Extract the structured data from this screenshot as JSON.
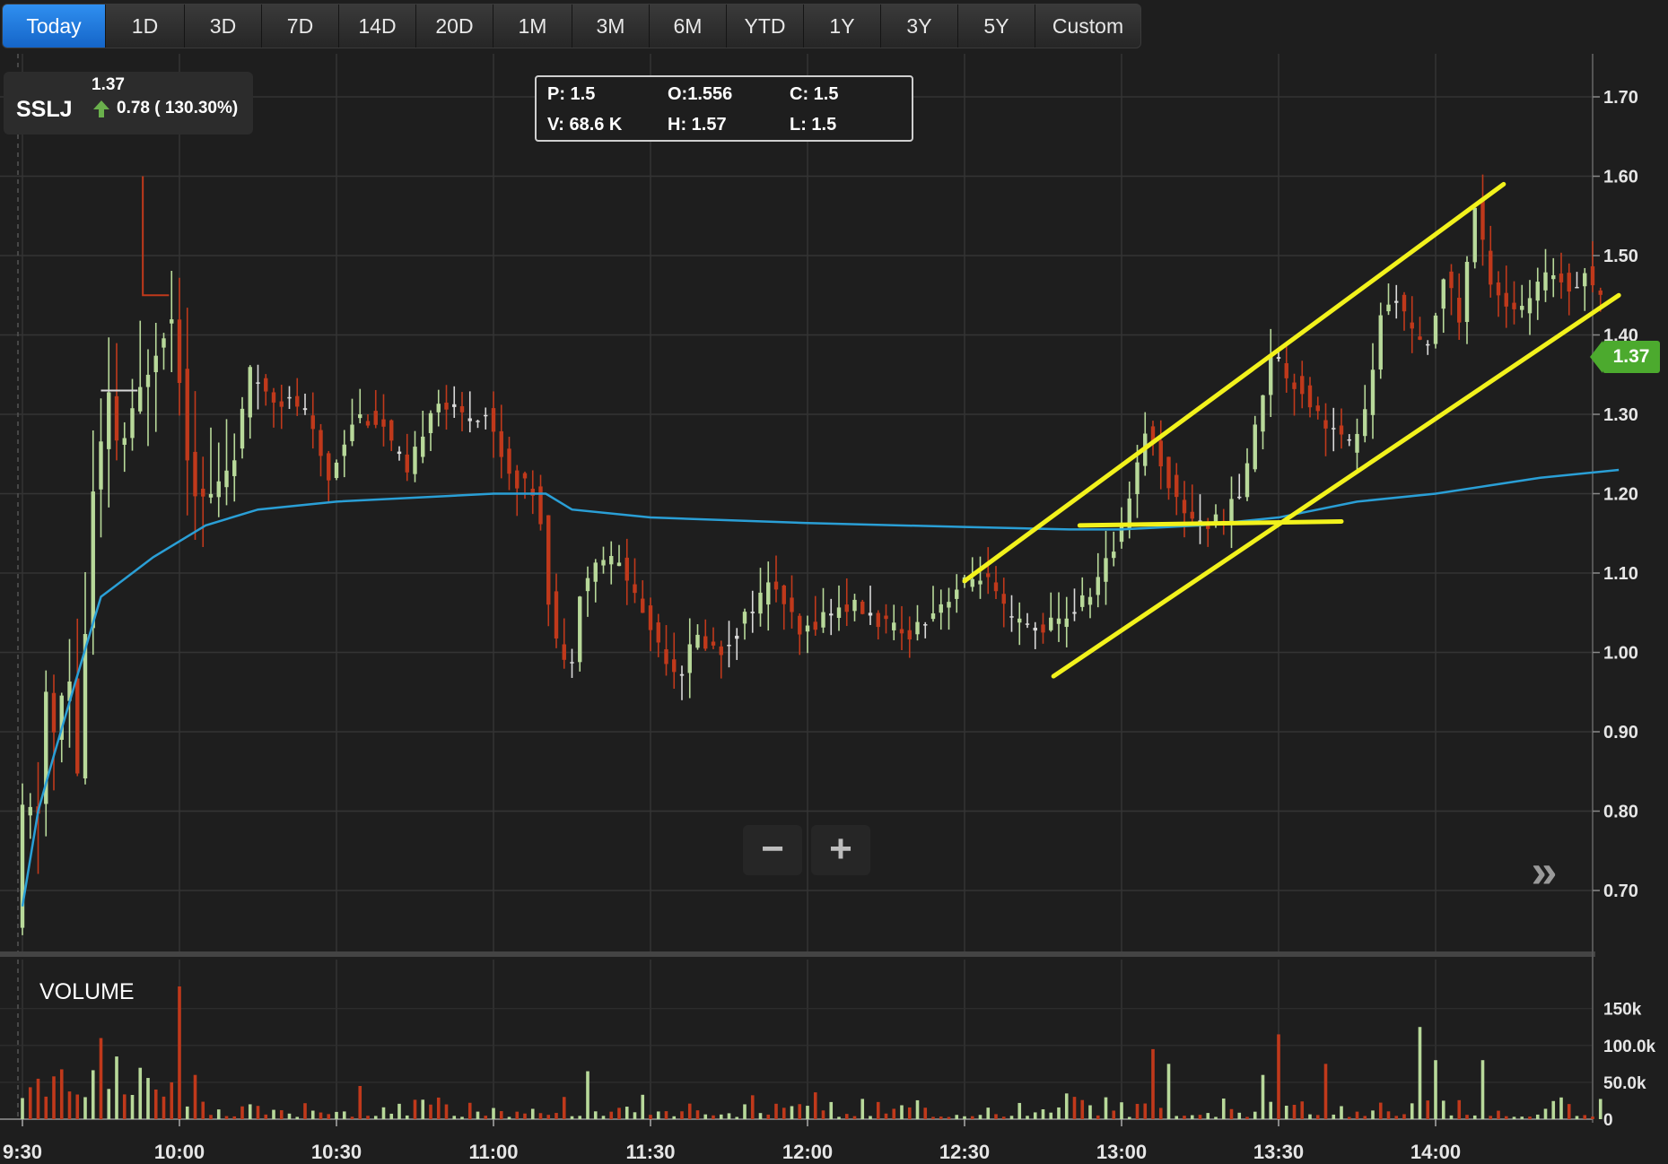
{
  "toolbar": {
    "ranges": [
      "Today",
      "1D",
      "3D",
      "7D",
      "14D",
      "20D",
      "1M",
      "3M",
      "6M",
      "YTD",
      "1Y",
      "3Y",
      "5Y",
      "Custom"
    ],
    "active": "Today"
  },
  "ticker": {
    "symbol": "SSLJ",
    "last_price": "1.37",
    "change": "0.78 ( 130.30%)"
  },
  "ohlc_panel": {
    "p": "P: 1.5",
    "o": "O:1.556",
    "c": "C: 1.5",
    "v": "V: 68.6 K",
    "h": "H: 1.57",
    "l": "L: 1.5"
  },
  "price_badge": "1.37",
  "zoom": {
    "minus": "−",
    "plus": "+"
  },
  "expand_icon": "double-chevron-right-icon",
  "volume_label": "VOLUME",
  "colors": {
    "background": "#1e1e1e",
    "up": "#b8d99a",
    "down": "#c0391b",
    "neutral": "#d9d9d9",
    "vwap": "#2a9fd6",
    "trendline": "#f2f21c",
    "active_tab": "#1e7ae0",
    "badge": "#4caa2e"
  },
  "chart_data": {
    "type": "candlestick",
    "symbol": "SSLJ",
    "x_axis": {
      "labels": [
        "9:30",
        "10:00",
        "10:30",
        "11:00",
        "11:30",
        "12:00",
        "12:30",
        "13:00",
        "13:30",
        "14:00"
      ],
      "range": [
        "9:30",
        "14:35"
      ]
    },
    "y_axis": {
      "labels": [
        "0.70",
        "0.80",
        "0.90",
        "1.00",
        "1.10",
        "1.20",
        "1.30",
        "1.40",
        "1.50",
        "1.60",
        "1.70"
      ],
      "range": [
        0.62,
        1.73
      ]
    },
    "volume_axis": {
      "labels": [
        "0",
        "50.0k",
        "100.0k",
        "150k"
      ],
      "range": [
        0,
        180000
      ]
    },
    "grid": true,
    "price_path": [
      [
        "9:30",
        0.65
      ],
      [
        "9:32",
        0.85
      ],
      [
        "9:34",
        0.75
      ],
      [
        "9:36",
        0.95
      ],
      [
        "9:38",
        0.88
      ],
      [
        "9:40",
        1.0
      ],
      [
        "9:42",
        0.85
      ],
      [
        "9:45",
        1.2
      ],
      [
        "9:48",
        1.32
      ],
      [
        "9:50",
        1.25
      ],
      [
        "9:54",
        1.33
      ],
      [
        "9:58",
        1.4
      ],
      [
        "10:00",
        1.42
      ],
      [
        "10:01",
        1.38
      ],
      [
        "10:03",
        1.25
      ],
      [
        "10:05",
        1.19
      ],
      [
        "10:08",
        1.2
      ],
      [
        "10:12",
        1.25
      ],
      [
        "10:15",
        1.35
      ],
      [
        "10:20",
        1.32
      ],
      [
        "10:25",
        1.31
      ],
      [
        "10:30",
        1.22
      ],
      [
        "10:35",
        1.3
      ],
      [
        "10:40",
        1.29
      ],
      [
        "10:45",
        1.22
      ],
      [
        "10:50",
        1.32
      ],
      [
        "10:55",
        1.3
      ],
      [
        "11:00",
        1.3
      ],
      [
        "11:05",
        1.22
      ],
      [
        "11:10",
        1.2
      ],
      [
        "11:12",
        1.07
      ],
      [
        "11:14",
        1.0
      ],
      [
        "11:16",
        0.97
      ],
      [
        "11:18",
        1.08
      ],
      [
        "11:22",
        1.12
      ],
      [
        "11:26",
        1.11
      ],
      [
        "11:30",
        1.05
      ],
      [
        "11:34",
        1.0
      ],
      [
        "11:37",
        0.97
      ],
      [
        "11:40",
        1.02
      ],
      [
        "11:45",
        1.0
      ],
      [
        "11:50",
        1.05
      ],
      [
        "11:55",
        1.09
      ],
      [
        "12:00",
        1.02
      ],
      [
        "12:05",
        1.05
      ],
      [
        "12:10",
        1.06
      ],
      [
        "12:15",
        1.04
      ],
      [
        "12:20",
        1.02
      ],
      [
        "12:25",
        1.05
      ],
      [
        "12:30",
        1.08
      ],
      [
        "12:35",
        1.1
      ],
      [
        "12:40",
        1.04
      ],
      [
        "12:45",
        1.03
      ],
      [
        "12:50",
        1.04
      ],
      [
        "12:55",
        1.07
      ],
      [
        "13:00",
        1.13
      ],
      [
        "13:03",
        1.2
      ],
      [
        "13:06",
        1.28
      ],
      [
        "13:09",
        1.24
      ],
      [
        "13:12",
        1.19
      ],
      [
        "13:15",
        1.17
      ],
      [
        "13:18",
        1.16
      ],
      [
        "13:21",
        1.17
      ],
      [
        "13:24",
        1.2
      ],
      [
        "13:27",
        1.28
      ],
      [
        "13:30",
        1.38
      ],
      [
        "13:33",
        1.35
      ],
      [
        "13:36",
        1.33
      ],
      [
        "13:39",
        1.3
      ],
      [
        "13:42",
        1.28
      ],
      [
        "13:45",
        1.26
      ],
      [
        "13:48",
        1.3
      ],
      [
        "13:51",
        1.42
      ],
      [
        "13:54",
        1.45
      ],
      [
        "13:57",
        1.4
      ],
      [
        "14:00",
        1.38
      ],
      [
        "14:03",
        1.48
      ],
      [
        "14:06",
        1.42
      ],
      [
        "14:09",
        1.56
      ],
      [
        "14:12",
        1.47
      ],
      [
        "14:15",
        1.44
      ],
      [
        "14:18",
        1.43
      ],
      [
        "14:21",
        1.46
      ],
      [
        "14:24",
        1.48
      ],
      [
        "14:27",
        1.46
      ],
      [
        "14:30",
        1.48
      ],
      [
        "14:33",
        1.45
      ]
    ],
    "vwap": [
      [
        "9:30",
        0.68
      ],
      [
        "9:33",
        0.8
      ],
      [
        "9:36",
        0.87
      ],
      [
        "9:40",
        0.96
      ],
      [
        "9:45",
        1.07
      ],
      [
        "9:55",
        1.12
      ],
      [
        "10:05",
        1.16
      ],
      [
        "10:15",
        1.18
      ],
      [
        "10:30",
        1.19
      ],
      [
        "11:00",
        1.2
      ],
      [
        "11:10",
        1.2
      ],
      [
        "11:15",
        1.18
      ],
      [
        "11:30",
        1.17
      ],
      [
        "12:00",
        1.163
      ],
      [
        "12:30",
        1.158
      ],
      [
        "12:50",
        1.155
      ],
      [
        "13:00",
        1.155
      ],
      [
        "13:15",
        1.16
      ],
      [
        "13:30",
        1.17
      ],
      [
        "13:45",
        1.19
      ],
      [
        "14:00",
        1.2
      ],
      [
        "14:10",
        1.21
      ],
      [
        "14:20",
        1.22
      ],
      [
        "14:35",
        1.23
      ]
    ],
    "volume_spikes": [
      [
        "9:40",
        95000
      ],
      [
        "9:45",
        110000
      ],
      [
        "9:48",
        85000
      ],
      [
        "10:00",
        180000
      ],
      [
        "10:03",
        60000
      ],
      [
        "10:35",
        45000
      ],
      [
        "11:18",
        65000
      ],
      [
        "13:06",
        95000
      ],
      [
        "13:09",
        75000
      ],
      [
        "13:27",
        60000
      ],
      [
        "13:30",
        115000
      ],
      [
        "13:39",
        75000
      ],
      [
        "13:57",
        125000
      ],
      [
        "14:00",
        80000
      ],
      [
        "14:09",
        80000
      ]
    ],
    "trendlines": [
      {
        "from": [
          "12:30",
          1.09
        ],
        "to": [
          "14:13",
          1.59
        ]
      },
      {
        "from": [
          "12:47",
          0.97
        ],
        "to": [
          "14:35",
          1.45
        ]
      },
      {
        "from": [
          "12:52",
          1.16
        ],
        "to": [
          "13:42",
          1.165
        ]
      }
    ]
  }
}
